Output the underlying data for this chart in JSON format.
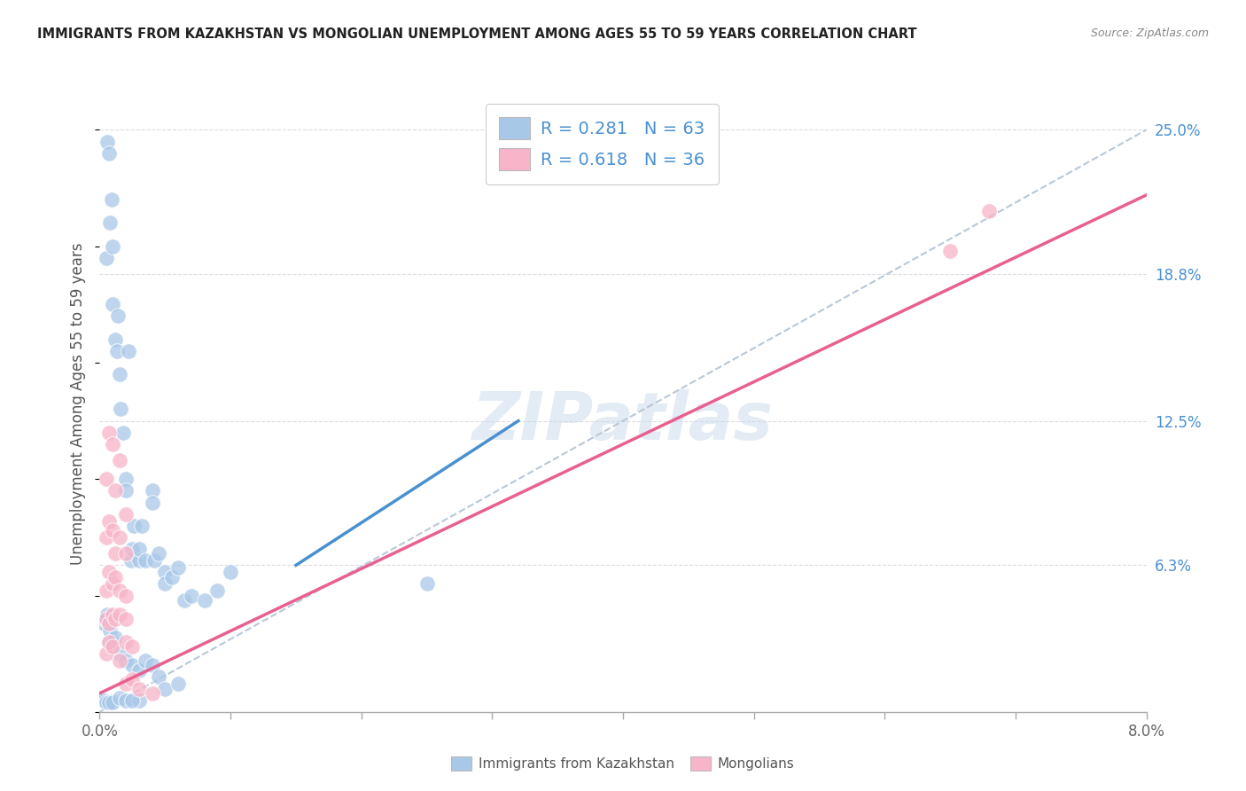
{
  "title": "IMMIGRANTS FROM KAZAKHSTAN VS MONGOLIAN UNEMPLOYMENT AMONG AGES 55 TO 59 YEARS CORRELATION CHART",
  "source": "Source: ZipAtlas.com",
  "ylabel": "Unemployment Among Ages 55 to 59 years",
  "xlim": [
    0.0,
    0.08
  ],
  "ylim": [
    0.0,
    0.265
  ],
  "blue_R": "0.281",
  "blue_N": "63",
  "pink_R": "0.618",
  "pink_N": "36",
  "legend1_label": "Immigrants from Kazakhstan",
  "legend2_label": "Mongolians",
  "watermark": "ZIPatlas",
  "blue_face": "#a8c8e8",
  "pink_face": "#f8b4c8",
  "blue_line": "#4a90d0",
  "pink_line": "#e86090",
  "dash_color": "#b8c8d8",
  "label_color": "#4a90d0",
  "grid_color": "#d8d8e0",
  "blue_line_x": [
    0.015,
    0.032
  ],
  "blue_line_y": [
    0.063,
    0.125
  ],
  "pink_line_x": [
    0.0,
    0.08
  ],
  "pink_line_y": [
    0.008,
    0.222
  ],
  "dash_line_x": [
    0.0,
    0.08
  ],
  "dash_line_y": [
    0.0,
    0.25
  ],
  "ytick_vals": [
    0.0,
    0.063,
    0.125,
    0.188,
    0.25
  ],
  "ytick_labels": [
    "",
    "6.3%",
    "12.5%",
    "18.8%",
    "25.0%"
  ],
  "xtick_vals": [
    0.0,
    0.01,
    0.02,
    0.03,
    0.04,
    0.05,
    0.06,
    0.07,
    0.08
  ],
  "xtick_labels": [
    "0.0%",
    "",
    "",
    "",
    "",
    "",
    "",
    "",
    "8.0%"
  ],
  "blue_x": [
    0.0005,
    0.0006,
    0.0007,
    0.0008,
    0.0009,
    0.001,
    0.001,
    0.0012,
    0.0013,
    0.0014,
    0.0015,
    0.0016,
    0.0018,
    0.002,
    0.002,
    0.0022,
    0.0024,
    0.0025,
    0.0026,
    0.003,
    0.003,
    0.0032,
    0.0035,
    0.004,
    0.004,
    0.0042,
    0.0045,
    0.005,
    0.005,
    0.0055,
    0.006,
    0.0065,
    0.007,
    0.008,
    0.009,
    0.01,
    0.0003,
    0.0004,
    0.0005,
    0.0006,
    0.0007,
    0.0008,
    0.001,
    0.0012,
    0.0015,
    0.002,
    0.0025,
    0.003,
    0.0035,
    0.004,
    0.0045,
    0.005,
    0.006,
    0.0003,
    0.0004,
    0.0005,
    0.0007,
    0.001,
    0.0015,
    0.002,
    0.025,
    0.003,
    0.0025
  ],
  "blue_y": [
    0.195,
    0.245,
    0.24,
    0.21,
    0.22,
    0.175,
    0.2,
    0.16,
    0.155,
    0.17,
    0.145,
    0.13,
    0.12,
    0.1,
    0.095,
    0.155,
    0.065,
    0.07,
    0.08,
    0.065,
    0.07,
    0.08,
    0.065,
    0.095,
    0.09,
    0.065,
    0.068,
    0.06,
    0.055,
    0.058,
    0.062,
    0.048,
    0.05,
    0.048,
    0.052,
    0.06,
    0.038,
    0.04,
    0.04,
    0.042,
    0.03,
    0.035,
    0.03,
    0.032,
    0.025,
    0.022,
    0.02,
    0.018,
    0.022,
    0.02,
    0.015,
    0.01,
    0.012,
    0.005,
    0.005,
    0.004,
    0.004,
    0.004,
    0.006,
    0.005,
    0.055,
    0.005,
    0.005
  ],
  "pink_x": [
    0.0005,
    0.0007,
    0.001,
    0.0012,
    0.0015,
    0.002,
    0.0005,
    0.0007,
    0.001,
    0.0012,
    0.0015,
    0.002,
    0.0005,
    0.0007,
    0.001,
    0.0012,
    0.0015,
    0.002,
    0.0005,
    0.0007,
    0.001,
    0.0012,
    0.0015,
    0.002,
    0.0005,
    0.0007,
    0.001,
    0.0015,
    0.002,
    0.0025,
    0.002,
    0.0025,
    0.003,
    0.004,
    0.065,
    0.068
  ],
  "pink_y": [
    0.1,
    0.12,
    0.115,
    0.095,
    0.108,
    0.085,
    0.075,
    0.082,
    0.078,
    0.068,
    0.075,
    0.068,
    0.052,
    0.06,
    0.055,
    0.058,
    0.052,
    0.05,
    0.04,
    0.038,
    0.042,
    0.04,
    0.042,
    0.04,
    0.025,
    0.03,
    0.028,
    0.022,
    0.03,
    0.028,
    0.012,
    0.014,
    0.01,
    0.008,
    0.198,
    0.215
  ]
}
